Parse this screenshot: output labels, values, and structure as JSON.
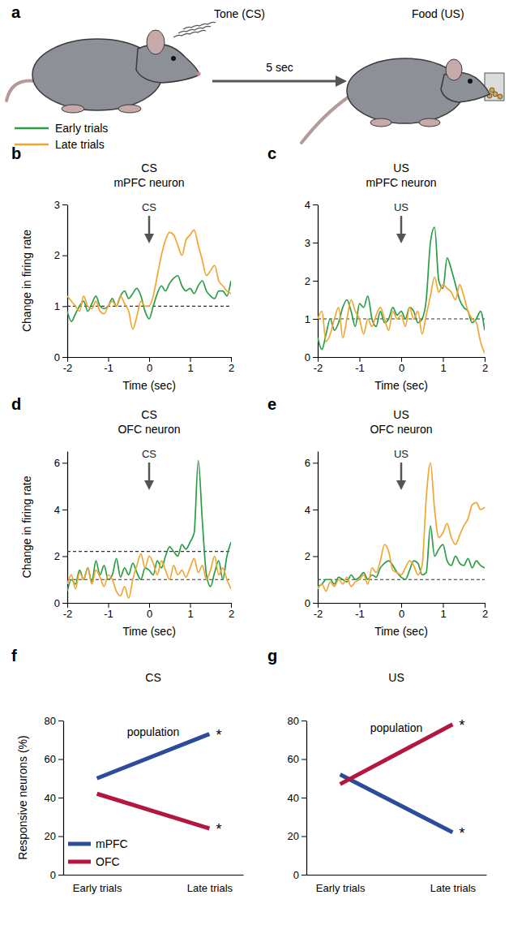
{
  "schematic": {
    "panel": "a",
    "cs_label": "Tone (CS)",
    "delay_label": "5 sec",
    "us_label": "Food (US)"
  },
  "chart_data": [
    {
      "panel": "b",
      "type": "line",
      "title": "CS",
      "subtitle": "mPFC neuron",
      "x": [
        -2,
        -1.9,
        -1.8,
        -1.7,
        -1.6,
        -1.5,
        -1.4,
        -1.3,
        -1.2,
        -1.1,
        -1,
        -0.9,
        -0.8,
        -0.7,
        -0.6,
        -0.5,
        -0.4,
        -0.3,
        -0.2,
        -0.1,
        0,
        0.1,
        0.2,
        0.3,
        0.4,
        0.5,
        0.6,
        0.7,
        0.8,
        0.9,
        1,
        1.1,
        1.2,
        1.3,
        1.4,
        1.5,
        1.6,
        1.7,
        1.8,
        1.9,
        2
      ],
      "xlim": [
        -2,
        2
      ],
      "xticks": [
        -2,
        -1,
        0,
        1,
        2
      ],
      "ylim": [
        0,
        3
      ],
      "yticks": [
        0,
        1,
        2,
        3
      ],
      "xlabel": "Time (sec)",
      "ylabel": "Change in firing rate",
      "reference_lines": [
        1
      ],
      "annotations": [
        {
          "text": "CS",
          "x": 0
        }
      ],
      "series": [
        {
          "name": "Early trials",
          "color": "#2a9d45",
          "values": [
            0.9,
            0.7,
            0.85,
            1.0,
            1.1,
            0.9,
            1.05,
            1.2,
            1.0,
            0.95,
            1.0,
            1.15,
            1.0,
            1.2,
            1.3,
            1.15,
            1.25,
            1.35,
            1.2,
            0.9,
            0.75,
            1.0,
            1.25,
            1.4,
            1.3,
            1.45,
            1.55,
            1.6,
            1.4,
            1.3,
            1.35,
            1.25,
            1.4,
            1.5,
            1.3,
            1.2,
            1.15,
            1.3,
            1.3,
            1.2,
            1.5
          ]
        },
        {
          "name": "Late trials",
          "color": "#f2a531",
          "values": [
            1.2,
            1.1,
            1.0,
            0.9,
            1.2,
            1.0,
            0.95,
            1.1,
            0.9,
            0.85,
            1.0,
            1.1,
            1.0,
            1.2,
            1.05,
            0.9,
            0.55,
            0.8,
            1.1,
            1.0,
            1.0,
            1.2,
            1.6,
            2.0,
            2.3,
            2.45,
            2.4,
            2.2,
            2.0,
            2.3,
            2.4,
            2.5,
            2.2,
            1.9,
            1.6,
            1.7,
            1.8,
            1.5,
            1.4,
            1.3,
            1.25
          ]
        }
      ]
    },
    {
      "panel": "c",
      "type": "line",
      "title": "US",
      "subtitle": "mPFC neuron",
      "x": [
        -2,
        -1.9,
        -1.8,
        -1.7,
        -1.6,
        -1.5,
        -1.4,
        -1.3,
        -1.2,
        -1.1,
        -1,
        -0.9,
        -0.8,
        -0.7,
        -0.6,
        -0.5,
        -0.4,
        -0.3,
        -0.2,
        -0.1,
        0,
        0.1,
        0.2,
        0.3,
        0.4,
        0.5,
        0.6,
        0.7,
        0.8,
        0.9,
        1,
        1.1,
        1.2,
        1.3,
        1.4,
        1.5,
        1.6,
        1.7,
        1.8,
        1.9,
        2
      ],
      "xlim": [
        -2,
        2
      ],
      "xticks": [
        -2,
        -1,
        0,
        1,
        2
      ],
      "ylim": [
        0,
        4
      ],
      "yticks": [
        0,
        1,
        2,
        3,
        4
      ],
      "xlabel": "Time (sec)",
      "reference_lines": [
        1
      ],
      "annotations": [
        {
          "text": "US",
          "x": 0
        }
      ],
      "series": [
        {
          "name": "Early trials",
          "color": "#2a9d45",
          "values": [
            0.5,
            0.2,
            0.6,
            1.0,
            0.7,
            0.9,
            1.3,
            1.5,
            1.2,
            0.8,
            1.4,
            1.3,
            1.6,
            1.0,
            0.8,
            1.2,
            0.9,
            1.0,
            1.3,
            1.1,
            1.2,
            1.0,
            1.3,
            1.2,
            0.9,
            1.0,
            1.5,
            3.0,
            3.4,
            2.0,
            1.8,
            2.6,
            2.3,
            1.9,
            1.5,
            1.3,
            1.2,
            0.9,
            1.0,
            1.2,
            0.7
          ]
        },
        {
          "name": "Late trials",
          "color": "#f2a531",
          "values": [
            1.0,
            1.2,
            0.4,
            0.6,
            1.0,
            1.3,
            0.5,
            1.0,
            1.5,
            1.2,
            1.0,
            0.6,
            1.0,
            0.8,
            1.1,
            1.3,
            1.0,
            0.7,
            1.2,
            1.0,
            1.1,
            0.8,
            1.3,
            1.0,
            1.2,
            0.6,
            1.1,
            1.6,
            2.1,
            1.7,
            1.9,
            1.8,
            1.7,
            1.5,
            1.9,
            1.6,
            1.2,
            1.0,
            0.9,
            0.4,
            0.1
          ]
        }
      ]
    },
    {
      "panel": "d",
      "type": "line",
      "title": "CS",
      "subtitle": "OFC neuron",
      "x": [
        -2,
        -1.9,
        -1.8,
        -1.7,
        -1.6,
        -1.5,
        -1.4,
        -1.3,
        -1.2,
        -1.1,
        -1,
        -0.9,
        -0.8,
        -0.7,
        -0.6,
        -0.5,
        -0.4,
        -0.3,
        -0.2,
        -0.1,
        0,
        0.1,
        0.2,
        0.3,
        0.4,
        0.5,
        0.6,
        0.7,
        0.8,
        0.9,
        1,
        1.1,
        1.2,
        1.3,
        1.4,
        1.5,
        1.6,
        1.7,
        1.8,
        1.9,
        2
      ],
      "xlim": [
        -2,
        2
      ],
      "xticks": [
        -2,
        -1,
        0,
        1,
        2
      ],
      "ylim": [
        0,
        6.5
      ],
      "yticks": [
        0,
        2,
        4,
        6
      ],
      "xlabel": "Time (sec)",
      "ylabel": "Change in firing rate",
      "reference_lines": [
        1,
        2.2
      ],
      "annotations": [
        {
          "text": "CS",
          "x": 0
        }
      ],
      "series": [
        {
          "name": "Early trials",
          "color": "#2a9d45",
          "values": [
            0.5,
            1.0,
            0.8,
            1.4,
            1.0,
            1.5,
            0.9,
            1.8,
            1.2,
            1.6,
            1.0,
            1.2,
            1.9,
            1.1,
            1.5,
            1.2,
            1.7,
            1.3,
            1.0,
            1.5,
            1.4,
            1.2,
            1.8,
            1.5,
            2.0,
            2.4,
            2.2,
            2.0,
            2.5,
            2.3,
            2.6,
            3.0,
            6.1,
            3.5,
            1.2,
            0.7,
            1.3,
            1.8,
            1.0,
            2.0,
            2.6
          ]
        },
        {
          "name": "Late trials",
          "color": "#f2a531",
          "values": [
            0.8,
            1.2,
            0.6,
            1.3,
            1.0,
            1.5,
            0.8,
            1.4,
            1.1,
            0.7,
            1.2,
            1.0,
            0.5,
            0.3,
            0.7,
            0.2,
            1.0,
            1.6,
            2.1,
            1.5,
            2.0,
            1.7,
            1.2,
            1.8,
            1.4,
            1.0,
            1.6,
            1.2,
            1.4,
            1.1,
            1.5,
            1.9,
            1.3,
            1.6,
            1.0,
            1.4,
            2.0,
            1.2,
            1.5,
            1.0,
            0.6
          ]
        }
      ]
    },
    {
      "panel": "e",
      "type": "line",
      "title": "US",
      "subtitle": "OFC neuron",
      "x": [
        -2,
        -1.9,
        -1.8,
        -1.7,
        -1.6,
        -1.5,
        -1.4,
        -1.3,
        -1.2,
        -1.1,
        -1,
        -0.9,
        -0.8,
        -0.7,
        -0.6,
        -0.5,
        -0.4,
        -0.3,
        -0.2,
        -0.1,
        0,
        0.1,
        0.2,
        0.3,
        0.4,
        0.5,
        0.6,
        0.7,
        0.8,
        0.9,
        1,
        1.1,
        1.2,
        1.3,
        1.4,
        1.5,
        1.6,
        1.7,
        1.8,
        1.9,
        2
      ],
      "xlim": [
        -2,
        2
      ],
      "xticks": [
        -2,
        -1,
        0,
        1,
        2
      ],
      "ylim": [
        0,
        6.5
      ],
      "yticks": [
        0,
        2,
        4,
        6
      ],
      "xlabel": "Time (sec)",
      "reference_lines": [
        1
      ],
      "annotations": [
        {
          "text": "US",
          "x": 0
        }
      ],
      "series": [
        {
          "name": "Early trials",
          "color": "#2a9d45",
          "values": [
            0.7,
            0.8,
            1.0,
            1.0,
            0.8,
            1.1,
            1.0,
            0.9,
            1.2,
            1.0,
            1.1,
            1.3,
            1.0,
            1.2,
            1.1,
            1.5,
            1.7,
            1.8,
            1.6,
            1.3,
            1.1,
            1.0,
            1.4,
            1.8,
            1.7,
            1.2,
            1.3,
            3.3,
            2.0,
            2.3,
            2.5,
            1.8,
            1.6,
            2.0,
            1.7,
            1.6,
            1.9,
            1.5,
            1.8,
            1.6,
            1.5
          ]
        },
        {
          "name": "Late trials",
          "color": "#f2a531",
          "values": [
            0.6,
            0.8,
            0.5,
            0.9,
            0.7,
            1.0,
            0.8,
            1.1,
            0.7,
            0.9,
            1.0,
            1.2,
            0.8,
            1.5,
            1.3,
            1.8,
            2.5,
            2.2,
            1.4,
            1.3,
            1.2,
            1.5,
            1.8,
            1.6,
            1.2,
            1.6,
            4.5,
            6.0,
            4.0,
            2.8,
            3.0,
            3.4,
            2.8,
            2.5,
            2.9,
            3.3,
            3.6,
            4.2,
            4.3,
            4.0,
            4.1
          ]
        }
      ]
    },
    {
      "panel": "f",
      "type": "line",
      "title": "CS",
      "note": "population",
      "categories": [
        "Early trials",
        "Late trials"
      ],
      "ylim": [
        0,
        80
      ],
      "yticks": [
        0,
        20,
        40,
        60,
        80
      ],
      "ylabel": "Responsive neurons (%)",
      "legend": "lower left",
      "series": [
        {
          "name": "mPFC",
          "color": "#2b4c9b",
          "values": [
            50,
            73
          ],
          "point_labels": [
            null,
            "*"
          ]
        },
        {
          "name": "OFC",
          "color": "#b3163f",
          "values": [
            42,
            24
          ],
          "point_labels": [
            null,
            "*"
          ]
        }
      ]
    },
    {
      "panel": "g",
      "type": "line",
      "title": "US",
      "note": "population",
      "categories": [
        "Early trials",
        "Late trials"
      ],
      "ylim": [
        0,
        80
      ],
      "yticks": [
        0,
        20,
        40,
        60,
        80
      ],
      "series": [
        {
          "name": "mPFC",
          "color": "#2b4c9b",
          "values": [
            52,
            22
          ],
          "point_labels": [
            null,
            "*"
          ]
        },
        {
          "name": "OFC",
          "color": "#b3163f",
          "values": [
            47,
            78
          ],
          "point_labels": [
            null,
            "*"
          ]
        }
      ]
    }
  ]
}
